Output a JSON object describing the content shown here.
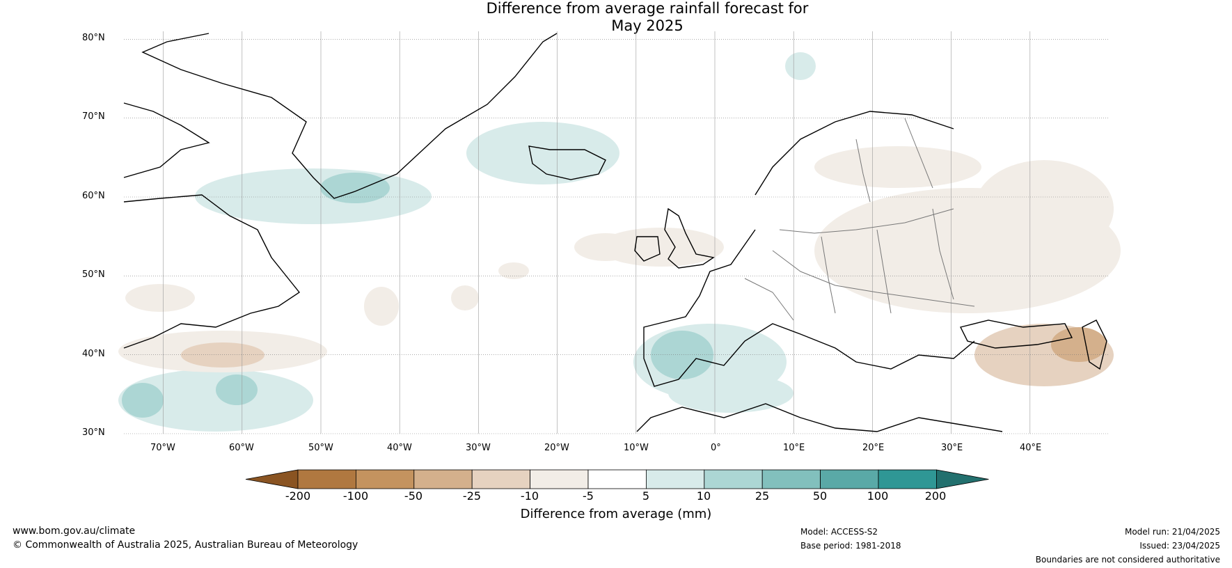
{
  "title": {
    "line1": "Difference from average rainfall forecast for",
    "line2": "May 2025"
  },
  "map": {
    "lat_labels": [
      "80°N",
      "70°N",
      "60°N",
      "50°N",
      "40°N",
      "30°N"
    ],
    "lon_labels": [
      "70°W",
      "60°W",
      "50°W",
      "40°W",
      "30°W",
      "20°W",
      "10°W",
      "0°",
      "10°E",
      "20°E",
      "30°E",
      "40°E"
    ],
    "lon_range": [
      -75,
      50
    ],
    "lat_range": [
      30,
      81
    ]
  },
  "colorbar": {
    "title": "Difference from average (mm)",
    "labels": [
      "-200",
      "-100",
      "-50",
      "-25",
      "-10",
      "-5",
      "5",
      "10",
      "25",
      "50",
      "100",
      "200"
    ],
    "colors": [
      "#8a5422",
      "#b07840",
      "#c4935f",
      "#d4b08c",
      "#e6d2c0",
      "#f2ede7",
      "#ffffff",
      "#d8ebea",
      "#acd6d4",
      "#82c0bd",
      "#5aa9a7",
      "#2f9795",
      "#22706e"
    ]
  },
  "footer": {
    "website": "www.bom.gov.au/climate",
    "copyright": "© Commonwealth of Australia 2025, Australian Bureau of Meteorology",
    "model": "Model: ACCESS-S2",
    "base_period": "Base period: 1981-2018",
    "model_run": "Model run: 21/04/2025",
    "issued": "Issued: 23/04/2025",
    "disclaimer": "Boundaries are not considered authoritative"
  }
}
